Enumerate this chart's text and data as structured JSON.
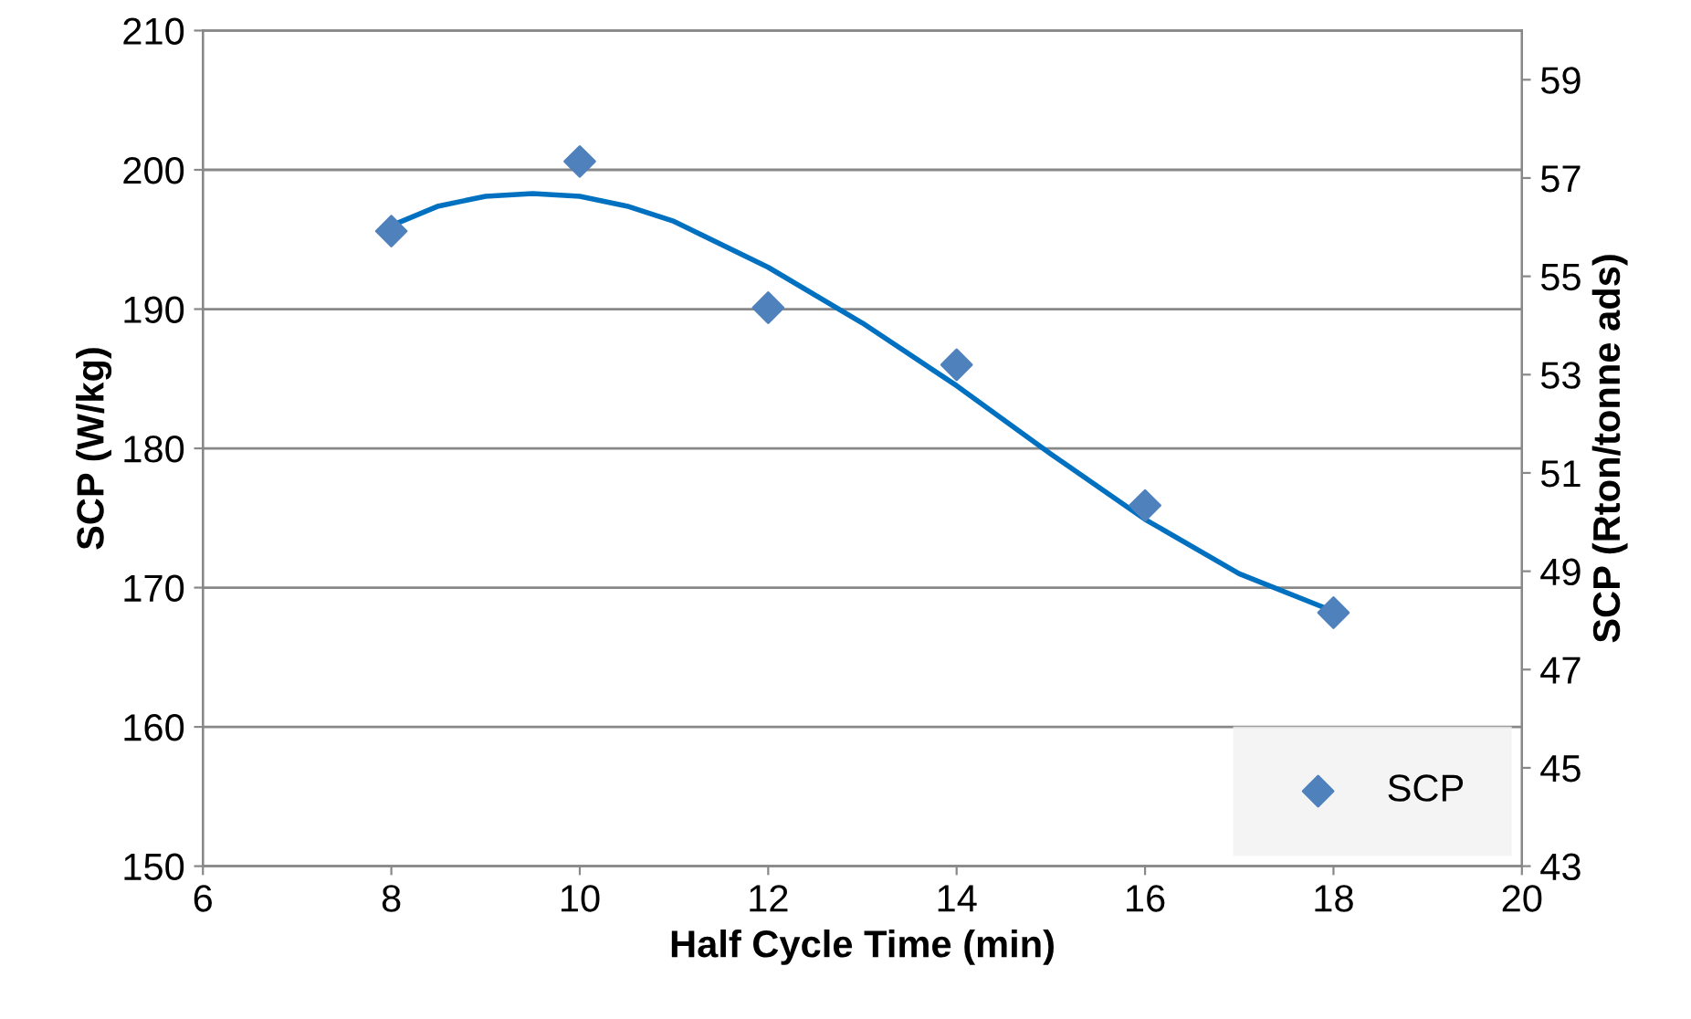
{
  "chart_data": {
    "type": "scatter",
    "xlabel": "Half Cycle Time (min)",
    "ylabel": "SCP (W/kg)",
    "y2label": "SCP (Rton/tonne ads)",
    "xlim": [
      6,
      20
    ],
    "xticks": [
      6,
      8,
      10,
      12,
      14,
      16,
      18,
      20
    ],
    "ylim": [
      150,
      210
    ],
    "yticks": [
      150,
      160,
      170,
      180,
      190,
      200,
      210
    ],
    "y2lim": [
      43,
      60
    ],
    "y2ticks": [
      43,
      45,
      47,
      49,
      51,
      53,
      55,
      57,
      59
    ],
    "grid": "y",
    "legend": "bottom right",
    "series": [
      {
        "name": "SCP",
        "marker": "diamond",
        "color": "#4f81bd",
        "x": [
          8,
          10,
          12,
          14,
          16,
          18
        ],
        "values": [
          195.6,
          200.6,
          190.1,
          186,
          175.9,
          168.2
        ]
      },
      {
        "type": "line",
        "marker": "none",
        "color": "#0070c0",
        "line_style": "solid",
        "x": [
          8,
          8.5,
          9,
          9.5,
          10,
          10.5,
          11,
          12,
          13,
          14,
          15,
          16,
          17,
          18
        ],
        "values": [
          196,
          197.4,
          198.1,
          198.3,
          198.1,
          197.4,
          196.3,
          193,
          189,
          184.5,
          179.6,
          174.9,
          171,
          168.3
        ]
      }
    ]
  }
}
